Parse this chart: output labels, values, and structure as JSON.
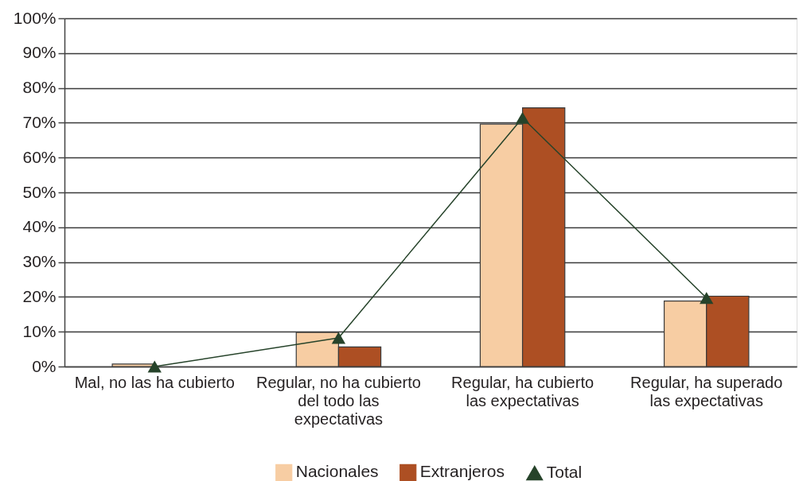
{
  "chart_data": {
    "type": "bar",
    "categories": [
      "Mal, no las ha cubierto",
      "Regular, no ha cubierto del todo las expectativas",
      "Regular, ha cubierto las expectativas",
      "Regular, ha superado las expectativas"
    ],
    "series": [
      {
        "name": "Nacionales",
        "color": "#f7cda3",
        "values": [
          0.7,
          9.8,
          69.6,
          18.8
        ]
      },
      {
        "name": "Extranjeros",
        "color": "#ad4f23",
        "values": [
          null,
          5.6,
          74.3,
          20.2
        ]
      },
      {
        "name": "Total",
        "type": "line",
        "color": "#26432a",
        "marker": "triangle",
        "values": [
          0,
          8.2,
          71.4,
          19.7
        ]
      }
    ],
    "ylim": [
      0,
      100
    ],
    "yticks": [
      {
        "value": 0,
        "label": "0%"
      },
      {
        "value": 10,
        "label": "10%"
      },
      {
        "value": 20,
        "label": "20%"
      },
      {
        "value": 30,
        "label": "30%"
      },
      {
        "value": 40,
        "label": "40%"
      },
      {
        "value": 50,
        "label": "50%"
      },
      {
        "value": 60,
        "label": "60%"
      },
      {
        "value": 70,
        "label": "70%"
      },
      {
        "value": 80,
        "label": "80%"
      },
      {
        "value": 90,
        "label": "90%"
      },
      {
        "value": 100,
        "label": "100%"
      }
    ],
    "grid": "y",
    "legend": "bottom"
  }
}
